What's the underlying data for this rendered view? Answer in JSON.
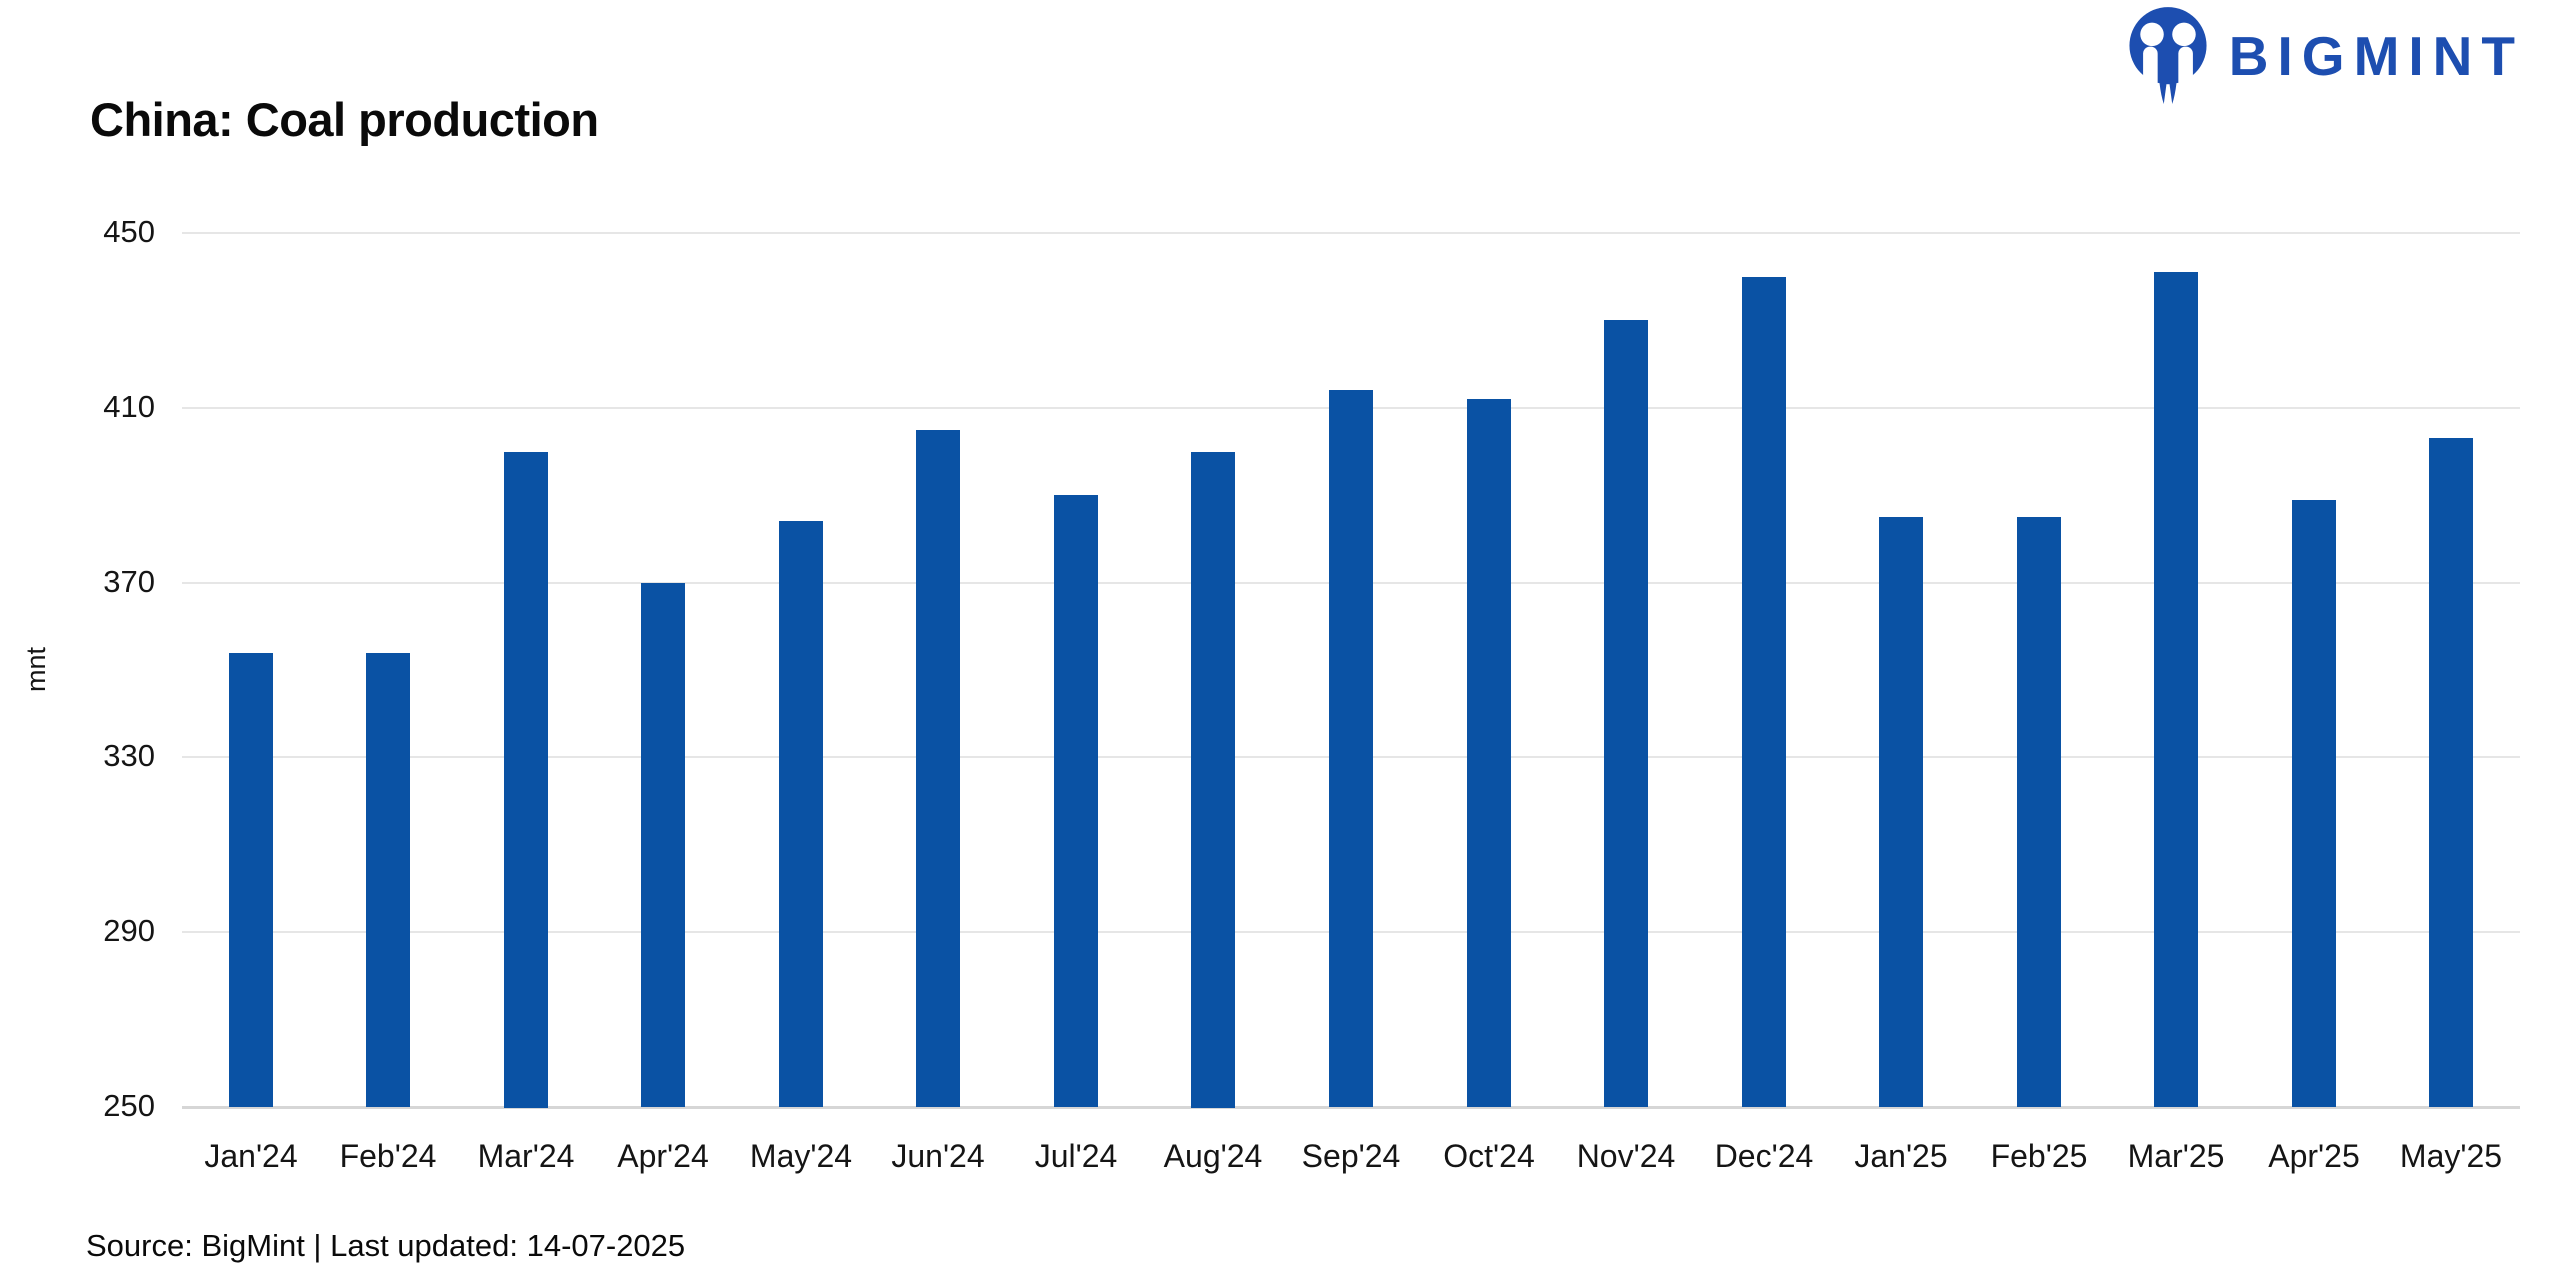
{
  "header": {
    "title": "China: Coal production"
  },
  "logo": {
    "text": "BIGMINT",
    "color": "#1d4eb0"
  },
  "chart_data": {
    "type": "bar",
    "title": "China: Coal production",
    "xlabel": "",
    "ylabel": "mnt",
    "ylim": [
      250,
      450
    ],
    "yticks": [
      450,
      410,
      370,
      330,
      290,
      250
    ],
    "grid": true,
    "legend": false,
    "categories": [
      "Jan'24",
      "Feb'24",
      "Mar'24",
      "Apr'24",
      "May'24",
      "Jun'24",
      "Jul'24",
      "Aug'24",
      "Sep'24",
      "Oct'24",
      "Nov'24",
      "Dec'24",
      "Jan'25",
      "Feb'25",
      "Mar'25",
      "Apr'25",
      "May'25"
    ],
    "series": [
      {
        "name": "Coal production (mnt)",
        "values": [
          354,
          354,
          400,
          370,
          384,
          405,
          390,
          400,
          414,
          412,
          430,
          440,
          385,
          385,
          441,
          389,
          403
        ]
      }
    ],
    "bar_color": "#0a52a4"
  },
  "footer": {
    "source": "Source: BigMint | Last updated: 14-07-2025"
  },
  "colors": {
    "bar": "#0a52a4",
    "logo_blue": "#1d4eb0",
    "gridline": "#e6e6e6",
    "axis_line": "#d6d6d6",
    "text": "#111111"
  }
}
